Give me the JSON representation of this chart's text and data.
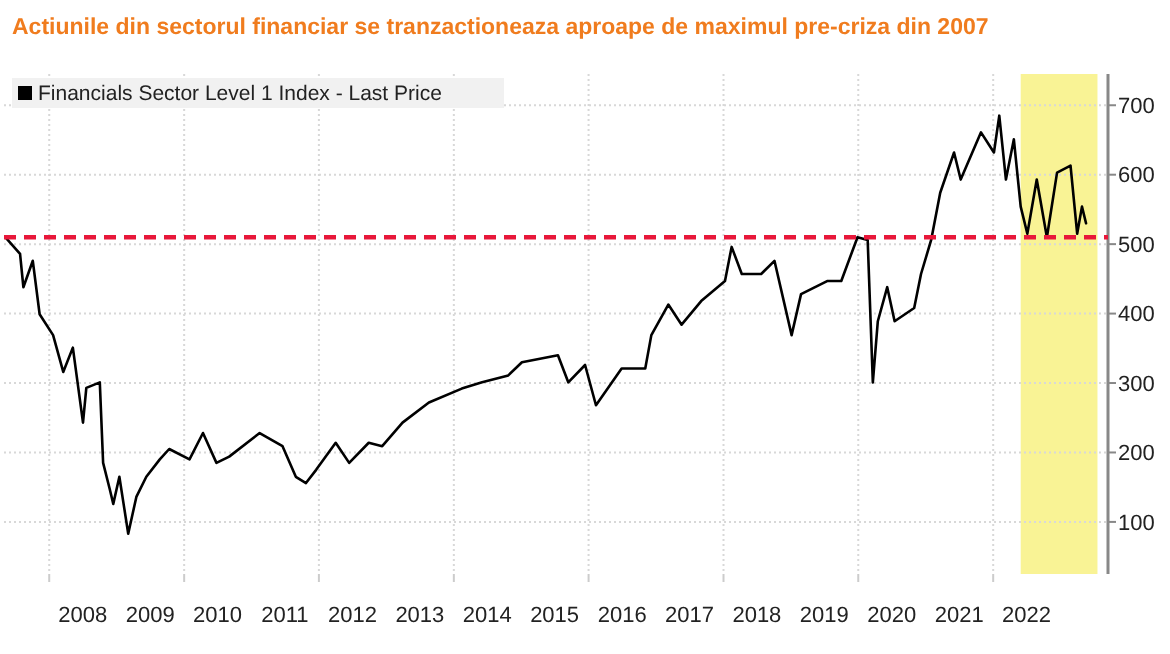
{
  "chart_data": {
    "type": "line",
    "title": "Actiunile din sectorul financiar se tranzactioneaza aproape de maximul pre-criza din 2007",
    "legend": "top left",
    "grid": true,
    "line_style": "solid",
    "x": [
      "2007-05-15",
      "2007-07-27",
      "2007-08-14",
      "2007-10-04",
      "2007-11-10",
      "2008-01-22",
      "2008-03-17",
      "2008-05-08",
      "2008-07-02",
      "2008-07-20",
      "2008-10-01",
      "2008-10-19",
      "2008-11-24",
      "2008-12-13",
      "2009-01-15",
      "2009-03-04",
      "2009-04-17",
      "2009-06-10",
      "2009-08-22",
      "2009-10-12",
      "2010-01-30",
      "2010-04-13",
      "2010-06-25",
      "2010-09-02",
      "2011-02-14",
      "2011-06-18",
      "2011-08-29",
      "2011-10-23",
      "2011-12-17",
      "2012-04-01",
      "2012-06-13",
      "2012-09-27",
      "2012-12-09",
      "2013-03-29",
      "2013-08-19",
      "2014-02-13",
      "2014-06-03",
      "2014-10-23",
      "2015-01-05",
      "2015-07-19",
      "2015-09-13",
      "2015-12-13",
      "2016-02-10",
      "2016-06-28",
      "2016-11-03",
      "2016-12-06",
      "2017-03-08",
      "2017-05-19",
      "2017-09-02",
      "2018-01-09",
      "2018-02-14",
      "2018-04-10",
      "2018-07-24",
      "2018-10-04",
      "2019-01-05",
      "2019-02-25",
      "2019-07-19",
      "2019-10-01",
      "2019-12-28",
      "2020-02-21",
      "2020-03-20",
      "2020-04-16",
      "2020-06-06",
      "2020-07-16",
      "2020-10-30",
      "2020-12-06",
      "2021-01-30",
      "2021-03-20",
      "2021-06-03",
      "2021-07-09",
      "2021-10-27",
      "2022-01-05",
      "2022-02-03",
      "2022-03-11",
      "2022-04-23",
      "2022-05-30",
      "2022-07-05",
      "2022-08-25",
      "2022-10-19",
      "2022-12-13",
      "2023-02-24",
      "2023-04-01",
      "2023-04-27",
      "2023-05-19"
    ],
    "series": [
      {
        "name": "Financials Sector Level 1 Index - Last Price",
        "color": "#000000",
        "values": [
          508,
          486,
          438,
          476,
          399,
          369,
          316,
          351,
          243,
          293,
          301,
          185,
          147,
          126,
          165,
          83,
          136,
          165,
          190,
          205,
          190,
          228,
          185,
          194,
          228,
          209,
          165,
          156,
          175,
          214,
          185,
          214,
          209,
          243,
          272,
          292,
          301,
          311,
          330,
          340,
          301,
          326,
          268,
          321,
          321,
          369,
          413,
          384,
          418,
          447,
          496,
          457,
          457,
          476,
          369,
          428,
          447,
          447,
          510,
          506,
          301,
          389,
          438,
          389,
          408,
          457,
          506,
          574,
          632,
          593,
          661,
          632,
          685,
          593,
          651,
          554,
          515,
          593,
          510,
          603,
          613,
          515,
          554,
          530
        ]
      }
    ],
    "xlim": [
      "2007-05-01",
      "2023-09-15"
    ],
    "xticks": [
      {
        "value": "2008-01-01",
        "label": null
      },
      {
        "value": "2008-07-01",
        "label": "2008"
      },
      {
        "value": "2009-07-01",
        "label": "2009"
      },
      {
        "value": "2010-01-01",
        "label": null
      },
      {
        "value": "2010-07-01",
        "label": "2010"
      },
      {
        "value": "2011-07-01",
        "label": "2011"
      },
      {
        "value": "2012-01-01",
        "label": null
      },
      {
        "value": "2012-07-01",
        "label": "2012"
      },
      {
        "value": "2013-07-01",
        "label": "2013"
      },
      {
        "value": "2014-01-01",
        "label": null
      },
      {
        "value": "2014-07-01",
        "label": "2014"
      },
      {
        "value": "2015-07-01",
        "label": "2015"
      },
      {
        "value": "2016-01-01",
        "label": null
      },
      {
        "value": "2016-07-01",
        "label": "2016"
      },
      {
        "value": "2017-07-01",
        "label": "2017"
      },
      {
        "value": "2018-01-01",
        "label": null
      },
      {
        "value": "2018-07-01",
        "label": "2018"
      },
      {
        "value": "2019-07-01",
        "label": "2019"
      },
      {
        "value": "2020-01-01",
        "label": null
      },
      {
        "value": "2020-07-01",
        "label": "2020"
      },
      {
        "value": "2021-07-01",
        "label": "2021"
      },
      {
        "value": "2022-01-01",
        "label": null
      },
      {
        "value": "2022-07-01",
        "label": "2022"
      }
    ],
    "ylim": [
      25,
      745
    ],
    "yticks": [
      100,
      200,
      300,
      400,
      500,
      600,
      700
    ],
    "ref_lines": [
      {
        "axis": "y",
        "value": 510,
        "label": null,
        "color": "#e8173a",
        "line_style": "dashed"
      }
    ],
    "bands": [
      {
        "axis": "x",
        "from": "2022-05-30",
        "to": "2023-07-20",
        "label": null,
        "color": "#f7f07a"
      }
    ]
  }
}
